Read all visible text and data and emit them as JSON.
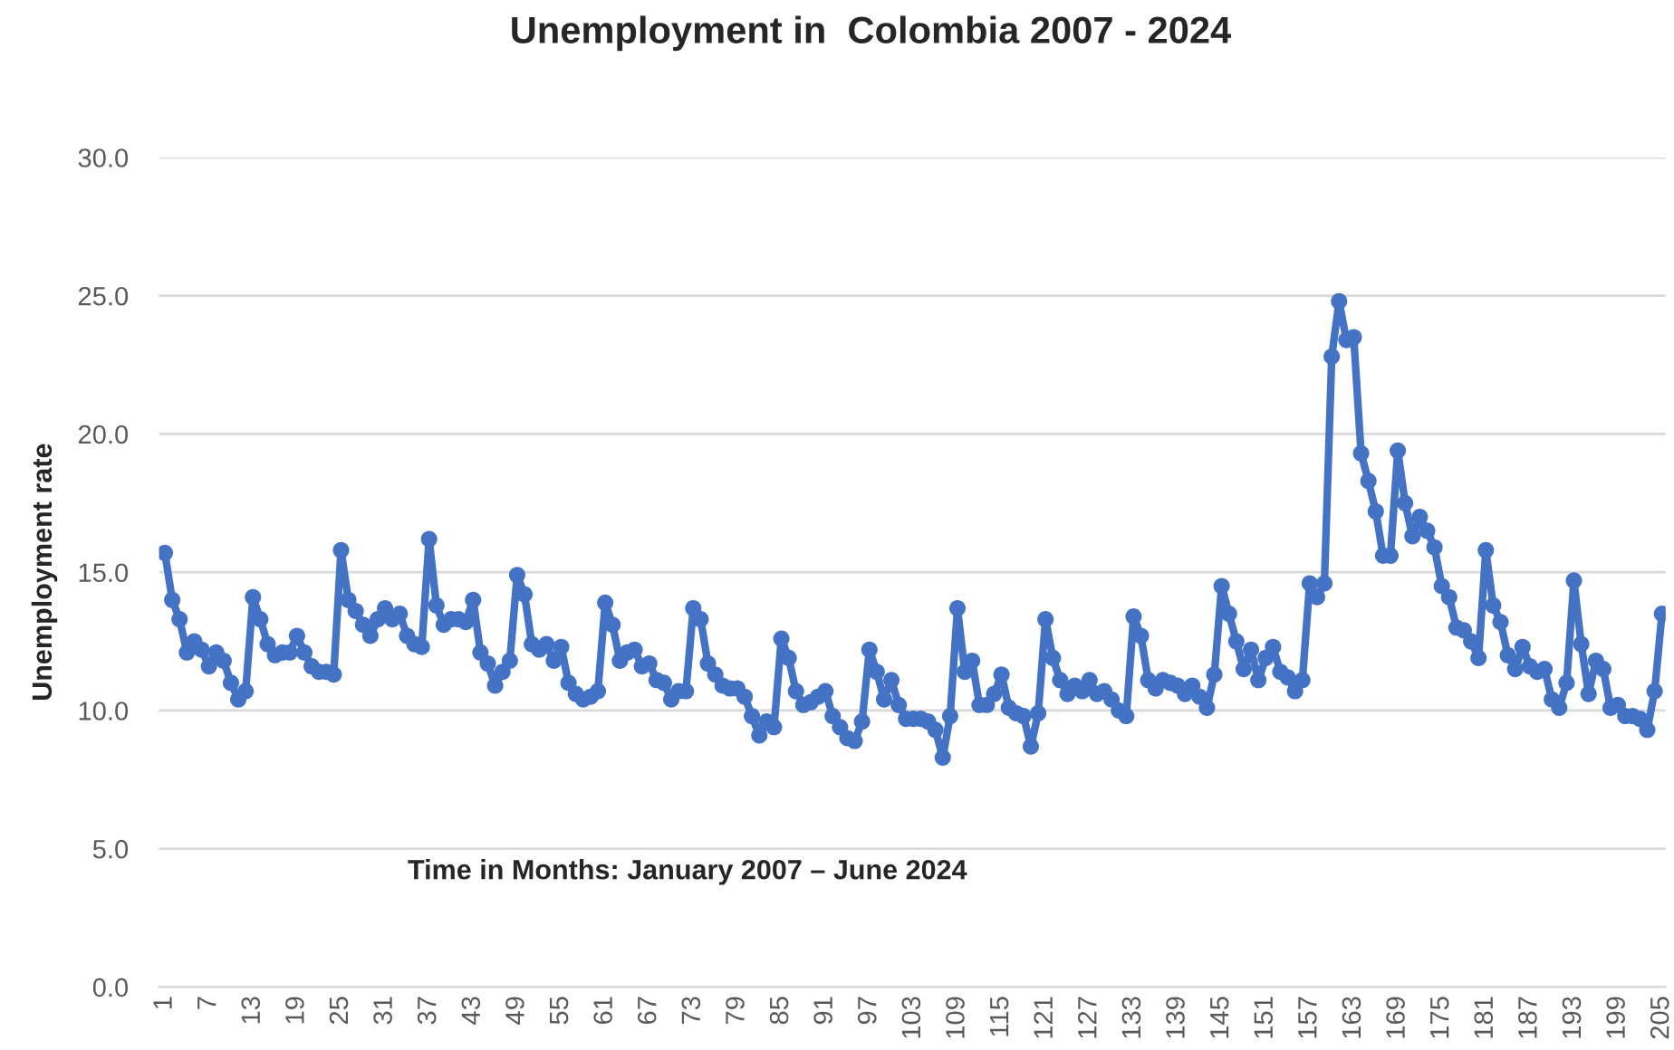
{
  "chart_data": {
    "type": "line",
    "title": "Unemployment in  Colombia 2007 - 2024",
    "ylabel": "Unemployment rate",
    "annotations": [
      "Time in Months: January 2007 – June 2024"
    ],
    "categories": [
      "1",
      null,
      null,
      null,
      null,
      null,
      "7",
      null,
      null,
      null,
      null,
      null,
      "13",
      null,
      null,
      null,
      null,
      null,
      "19",
      null,
      null,
      null,
      null,
      null,
      "25",
      null,
      null,
      null,
      null,
      null,
      "31",
      null,
      null,
      null,
      null,
      null,
      "37",
      null,
      null,
      null,
      null,
      null,
      "43",
      null,
      null,
      null,
      null,
      null,
      "49",
      null,
      null,
      null,
      null,
      null,
      "55",
      null,
      null,
      null,
      null,
      null,
      "61",
      null,
      null,
      null,
      null,
      null,
      "67",
      null,
      null,
      null,
      null,
      null,
      "73",
      null,
      null,
      null,
      null,
      null,
      "79",
      null,
      null,
      null,
      null,
      null,
      "85",
      null,
      null,
      null,
      null,
      null,
      "91",
      null,
      null,
      null,
      null,
      null,
      "97",
      null,
      null,
      null,
      null,
      null,
      "103",
      null,
      null,
      null,
      null,
      null,
      "109",
      null,
      null,
      null,
      null,
      null,
      "115",
      null,
      null,
      null,
      null,
      null,
      "121",
      null,
      null,
      null,
      null,
      null,
      "127",
      null,
      null,
      null,
      null,
      null,
      "133",
      null,
      null,
      null,
      null,
      null,
      "139",
      null,
      null,
      null,
      null,
      null,
      "145",
      null,
      null,
      null,
      null,
      null,
      "151",
      null,
      null,
      null,
      null,
      null,
      "157",
      null,
      null,
      null,
      null,
      null,
      "163",
      null,
      null,
      null,
      null,
      null,
      "169",
      null,
      null,
      null,
      null,
      null,
      "175",
      null,
      null,
      null,
      null,
      null,
      "181",
      null,
      null,
      null,
      null,
      null,
      "187",
      null,
      null,
      null,
      null,
      null,
      "193",
      null,
      null,
      null,
      null,
      null,
      "199",
      null,
      null,
      null,
      null,
      null,
      "205"
    ],
    "series": [
      {
        "color": "#4472c4",
        "values": [
          15.7,
          14.0,
          13.3,
          12.1,
          12.5,
          12.2,
          11.6,
          12.1,
          11.8,
          11.0,
          10.4,
          10.7,
          14.1,
          13.3,
          12.4,
          12.0,
          12.1,
          12.1,
          12.7,
          12.1,
          11.6,
          11.4,
          11.4,
          11.3,
          15.8,
          14.0,
          13.6,
          13.1,
          12.7,
          13.3,
          13.7,
          13.3,
          13.5,
          12.7,
          12.4,
          12.3,
          16.2,
          13.8,
          13.1,
          13.3,
          13.3,
          13.2,
          14.0,
          12.1,
          11.7,
          10.9,
          11.4,
          11.8,
          14.9,
          14.2,
          12.4,
          12.2,
          12.4,
          11.8,
          12.3,
          11.0,
          10.6,
          10.4,
          10.5,
          10.7,
          13.9,
          13.1,
          11.8,
          12.1,
          12.2,
          11.6,
          11.7,
          11.1,
          11.0,
          10.4,
          10.7,
          10.7,
          13.7,
          13.3,
          11.7,
          11.3,
          10.9,
          10.8,
          10.8,
          10.5,
          9.8,
          9.1,
          9.6,
          9.4,
          12.6,
          11.9,
          10.7,
          10.2,
          10.3,
          10.5,
          10.7,
          9.8,
          9.4,
          9.0,
          8.9,
          9.6,
          12.2,
          11.4,
          10.4,
          11.1,
          10.2,
          9.7,
          9.7,
          9.7,
          9.6,
          9.3,
          8.3,
          9.8,
          13.7,
          11.4,
          11.8,
          10.2,
          10.2,
          10.6,
          11.3,
          10.1,
          9.9,
          9.8,
          8.7,
          9.9,
          13.3,
          11.9,
          11.1,
          10.6,
          10.9,
          10.7,
          11.1,
          10.6,
          10.7,
          10.4,
          10.0,
          9.8,
          13.4,
          12.7,
          11.1,
          10.8,
          11.1,
          11.0,
          10.9,
          10.6,
          10.9,
          10.5,
          10.1,
          11.3,
          14.5,
          13.5,
          12.5,
          11.5,
          12.2,
          11.1,
          11.9,
          12.3,
          11.4,
          11.2,
          10.7,
          11.1,
          14.6,
          14.1,
          14.6,
          22.8,
          24.8,
          23.4,
          23.5,
          19.3,
          18.3,
          17.2,
          15.6,
          15.6,
          19.4,
          17.5,
          16.3,
          17.0,
          16.5,
          15.9,
          14.5,
          14.1,
          13.0,
          12.9,
          12.5,
          11.9,
          15.8,
          13.8,
          13.2,
          12.0,
          11.5,
          12.3,
          11.6,
          11.4,
          11.5,
          10.4,
          10.1,
          11.0,
          14.7,
          12.4,
          10.6,
          11.8,
          11.5,
          10.1,
          10.2,
          9.8,
          9.8,
          9.7,
          9.3,
          10.7,
          13.5
        ]
      }
    ],
    "ylim": [
      0,
      30
    ],
    "yticks": [
      {
        "value": 0,
        "label": "0.0"
      },
      {
        "value": 5,
        "label": "5.0"
      },
      {
        "value": 10,
        "label": "10.0"
      },
      {
        "value": 15,
        "label": "15.0"
      },
      {
        "value": 20,
        "label": "20.0"
      },
      {
        "value": 25,
        "label": "25.0"
      },
      {
        "value": 30,
        "label": "30.0"
      }
    ],
    "grid": "y",
    "legend": false,
    "marker": "circle",
    "line_style": "solid"
  }
}
